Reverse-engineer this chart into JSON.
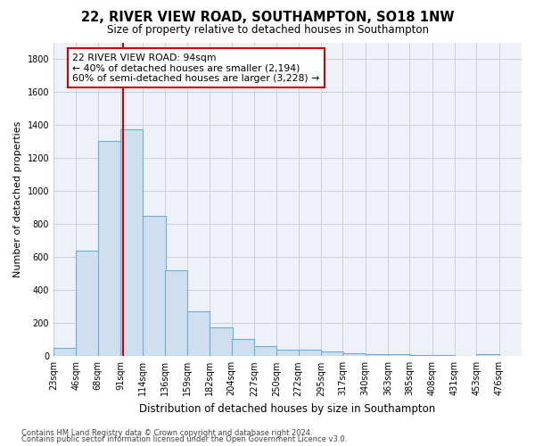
{
  "title": "22, RIVER VIEW ROAD, SOUTHAMPTON, SO18 1NW",
  "subtitle": "Size of property relative to detached houses in Southampton",
  "xlabel": "Distribution of detached houses by size in Southampton",
  "ylabel": "Number of detached properties",
  "bar_color": "#cfdff0",
  "bar_edge_color": "#6baed6",
  "grid_color": "#c8d0e0",
  "bg_color": "#eef2f8",
  "vline_x": 94,
  "vline_color": "#cc0000",
  "annotation_text": "22 RIVER VIEW ROAD: 94sqm\n← 40% of detached houses are smaller (2,194)\n60% of semi-detached houses are larger (3,228) →",
  "footnote1": "Contains HM Land Registry data © Crown copyright and database right 2024.",
  "footnote2": "Contains public sector information licensed under the Open Government Licence v3.0.",
  "bins": [
    23,
    46,
    68,
    91,
    114,
    136,
    159,
    182,
    204,
    227,
    250,
    272,
    295,
    317,
    340,
    363,
    385,
    408,
    431,
    453,
    476
  ],
  "counts": [
    50,
    640,
    1305,
    1375,
    848,
    520,
    273,
    174,
    103,
    63,
    40,
    37,
    30,
    20,
    10,
    10,
    8,
    5,
    3,
    12
  ],
  "ylim": [
    0,
    1900
  ],
  "yticks": [
    0,
    200,
    400,
    600,
    800,
    1000,
    1200,
    1400,
    1600,
    1800
  ],
  "title_fontsize": 10.5,
  "subtitle_fontsize": 8.5,
  "ylabel_fontsize": 8,
  "xlabel_fontsize": 8.5,
  "tick_fontsize": 7,
  "footnote_fontsize": 6
}
